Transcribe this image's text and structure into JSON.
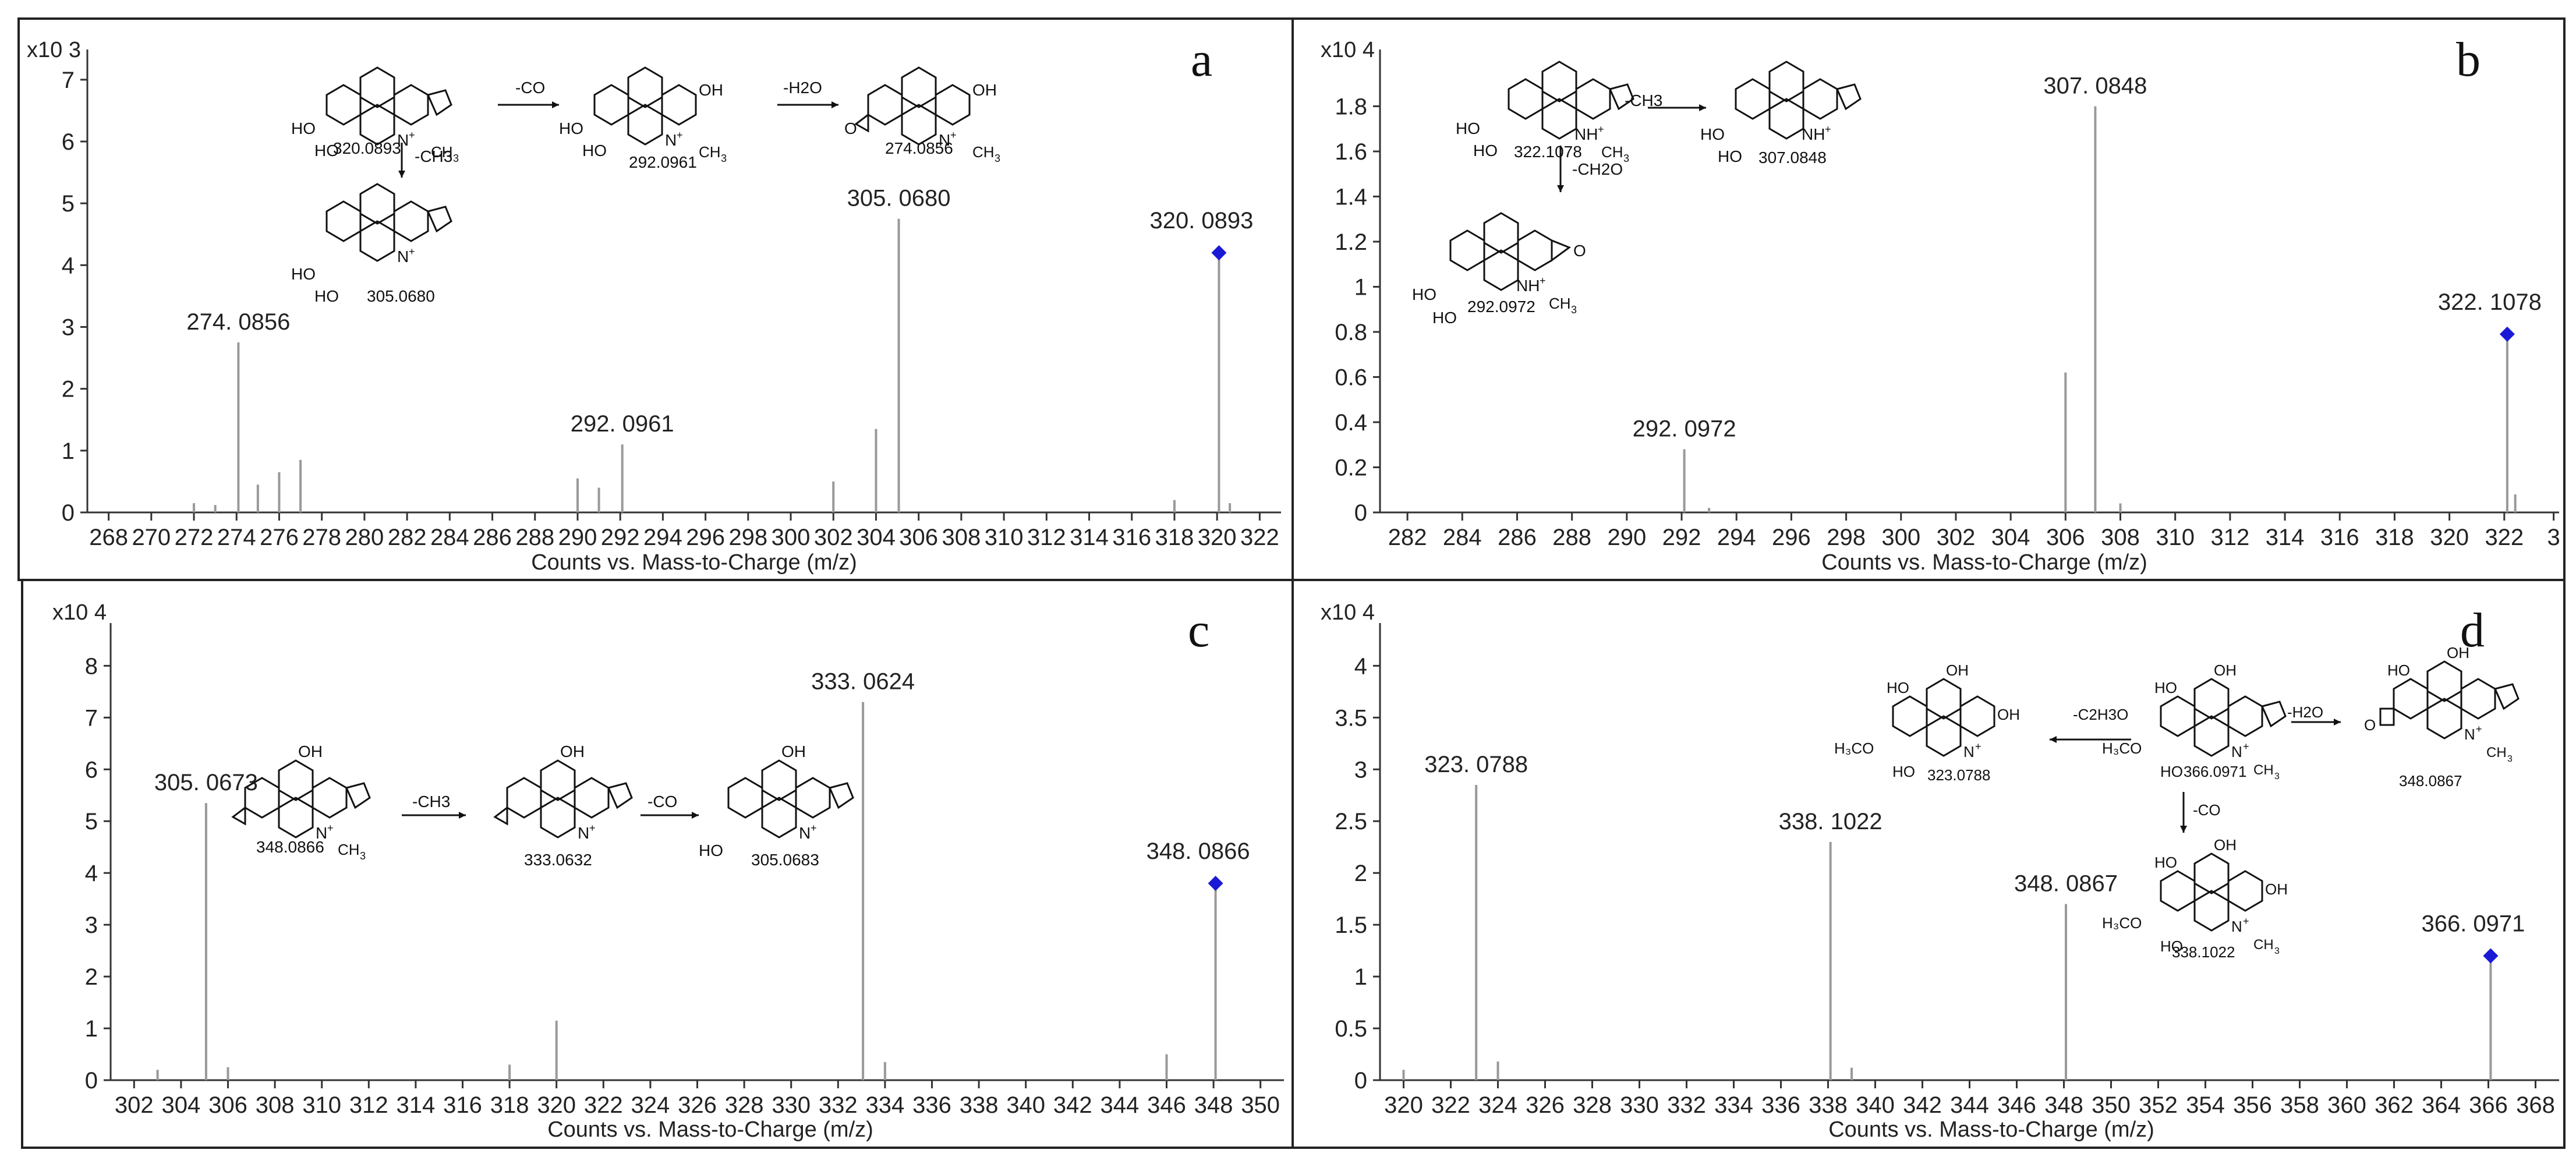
{
  "figure": {
    "panel_labels": [
      "a",
      "b",
      "c",
      "d"
    ],
    "xlabel": "Counts vs. Mass-to-Charge (m/z)"
  },
  "colors": {
    "spectrum": "#999999",
    "precursor": "#1a1ad6",
    "axis": "#333333",
    "text": "#222222"
  },
  "chart_data": [
    {
      "type": "bar",
      "panel": "a",
      "xlabel": "Counts vs. Mass-to-Charge (m/z)",
      "y_multiplier": "x10 3",
      "xlim": [
        267,
        323
      ],
      "ylim": [
        0,
        7.3
      ],
      "xticks": [
        268,
        270,
        272,
        274,
        276,
        278,
        280,
        282,
        284,
        286,
        288,
        290,
        292,
        294,
        296,
        298,
        300,
        302,
        304,
        306,
        308,
        310,
        312,
        314,
        316,
        318,
        320,
        322
      ],
      "yticks": [
        0,
        1,
        2,
        3,
        4,
        5,
        6,
        7
      ],
      "precursor": {
        "mz": 320.0893,
        "intensity": 4.2,
        "label": "320. 0893"
      },
      "peaks": [
        {
          "mz": 272.0,
          "i": 0.15
        },
        {
          "mz": 273.0,
          "i": 0.12
        },
        {
          "mz": 274.0856,
          "i": 2.75,
          "label": "274. 0856"
        },
        {
          "mz": 275.0,
          "i": 0.45
        },
        {
          "mz": 276.0,
          "i": 0.65
        },
        {
          "mz": 277.0,
          "i": 0.85
        },
        {
          "mz": 290.0,
          "i": 0.55
        },
        {
          "mz": 291.0,
          "i": 0.4
        },
        {
          "mz": 292.0961,
          "i": 1.1,
          "label": "292. 0961"
        },
        {
          "mz": 302.0,
          "i": 0.5
        },
        {
          "mz": 304.0,
          "i": 1.35
        },
        {
          "mz": 305.068,
          "i": 4.75,
          "label": "305. 0680"
        },
        {
          "mz": 318.0,
          "i": 0.2
        },
        {
          "mz": 320.0893,
          "i": 4.2
        },
        {
          "mz": 320.6,
          "i": 0.15
        }
      ],
      "structures": [
        {
          "label": "320.0893",
          "superscript": "+",
          "kind": "parent"
        },
        {
          "label": "292.0961",
          "kind": "fragment"
        },
        {
          "label": "274.0856",
          "kind": "fragment"
        },
        {
          "label": "305.0680",
          "kind": "fragment"
        }
      ],
      "arrows": [
        {
          "label": "-CO"
        },
        {
          "label": "-H2O"
        },
        {
          "label": "-CH3"
        }
      ]
    },
    {
      "type": "bar",
      "panel": "b",
      "xlabel": "Counts vs. Mass-to-Charge (m/z)",
      "y_multiplier": "x10 4",
      "xlim": [
        281,
        324
      ],
      "ylim": [
        0,
        2.0
      ],
      "xticks": [
        282,
        284,
        286,
        288,
        290,
        292,
        294,
        296,
        298,
        300,
        302,
        304,
        306,
        308,
        310,
        312,
        314,
        316,
        318,
        320,
        322,
        "3"
      ],
      "yticks": [
        0,
        0.2,
        0.4,
        0.6,
        0.8,
        1,
        1.2,
        1.4,
        1.6,
        1.8
      ],
      "precursor": {
        "mz": 322.1078,
        "intensity": 0.79,
        "label": "322. 1078"
      },
      "peaks": [
        {
          "mz": 292.0972,
          "i": 0.28,
          "label": "292. 0972"
        },
        {
          "mz": 293.0,
          "i": 0.02
        },
        {
          "mz": 306.0,
          "i": 0.62
        },
        {
          "mz": 307.0848,
          "i": 1.8,
          "label": "307. 0848"
        },
        {
          "mz": 308.0,
          "i": 0.04
        },
        {
          "mz": 322.1078,
          "i": 0.79
        },
        {
          "mz": 322.4,
          "i": 0.08
        }
      ],
      "structures": [
        {
          "label": "322.1078",
          "kind": "parent"
        },
        {
          "label": "307.0848",
          "kind": "fragment"
        },
        {
          "label": "292.0972",
          "kind": "fragment"
        }
      ],
      "arrows": [
        {
          "label": "-CH3"
        },
        {
          "label": "-CH2O"
        }
      ]
    },
    {
      "type": "bar",
      "panel": "c",
      "xlabel": "Counts vs. Mass-to-Charge (m/z)",
      "y_multiplier": "x10 4",
      "xlim": [
        301,
        351
      ],
      "ylim": [
        0,
        8.6
      ],
      "xticks": [
        302,
        304,
        306,
        308,
        310,
        312,
        314,
        316,
        318,
        320,
        322,
        324,
        326,
        328,
        330,
        332,
        334,
        336,
        338,
        340,
        342,
        344,
        346,
        348,
        350
      ],
      "yticks": [
        0,
        1,
        2,
        3,
        4,
        5,
        6,
        7,
        8
      ],
      "precursor": {
        "mz": 348.0866,
        "intensity": 3.8,
        "label": "348. 0866"
      },
      "peaks": [
        {
          "mz": 303.0,
          "i": 0.2
        },
        {
          "mz": 305.0673,
          "i": 5.35,
          "label": "305. 0673"
        },
        {
          "mz": 306.0,
          "i": 0.25
        },
        {
          "mz": 318.0,
          "i": 0.3
        },
        {
          "mz": 320.0,
          "i": 1.15
        },
        {
          "mz": 333.0624,
          "i": 7.3,
          "label": "333. 0624"
        },
        {
          "mz": 334.0,
          "i": 0.35
        },
        {
          "mz": 346.0,
          "i": 0.5
        },
        {
          "mz": 348.0866,
          "i": 3.8
        }
      ],
      "structures": [
        {
          "label": "348.0866",
          "kind": "parent"
        },
        {
          "label": "333.0632",
          "kind": "fragment"
        },
        {
          "label": "305.0683",
          "kind": "fragment"
        }
      ],
      "arrows": [
        {
          "label": "-CH3"
        },
        {
          "label": "-CO"
        }
      ]
    },
    {
      "type": "bar",
      "panel": "d",
      "xlabel": "Counts vs. Mass-to-Charge (m/z)",
      "y_multiplier": "x10 4",
      "xlim": [
        319,
        369
      ],
      "ylim": [
        0,
        4.3
      ],
      "xticks": [
        320,
        322,
        324,
        326,
        328,
        330,
        332,
        334,
        336,
        338,
        340,
        342,
        344,
        346,
        348,
        350,
        352,
        354,
        356,
        358,
        360,
        362,
        364,
        366,
        368
      ],
      "yticks": [
        0,
        0.5,
        1,
        1.5,
        2,
        2.5,
        3,
        3.5,
        4
      ],
      "precursor": {
        "mz": 366.0971,
        "intensity": 1.2,
        "label": "366. 0971"
      },
      "peaks": [
        {
          "mz": 320.0,
          "i": 0.1
        },
        {
          "mz": 323.0788,
          "i": 2.85,
          "label": "323. 0788"
        },
        {
          "mz": 324.0,
          "i": 0.18
        },
        {
          "mz": 338.1022,
          "i": 2.3,
          "label": "338. 1022"
        },
        {
          "mz": 339.0,
          "i": 0.12
        },
        {
          "mz": 348.0867,
          "i": 1.7,
          "label": "348. 0867"
        },
        {
          "mz": 366.0971,
          "i": 1.2
        }
      ],
      "structures": [
        {
          "label": "366.0971",
          "kind": "parent"
        },
        {
          "label": "323.0788",
          "kind": "fragment"
        },
        {
          "label": "348.0867",
          "kind": "fragment"
        },
        {
          "label": "338.1022",
          "kind": "fragment"
        }
      ],
      "arrows": [
        {
          "label": "-C2H3O"
        },
        {
          "label": "-H2O"
        },
        {
          "label": "-CO"
        }
      ]
    }
  ]
}
